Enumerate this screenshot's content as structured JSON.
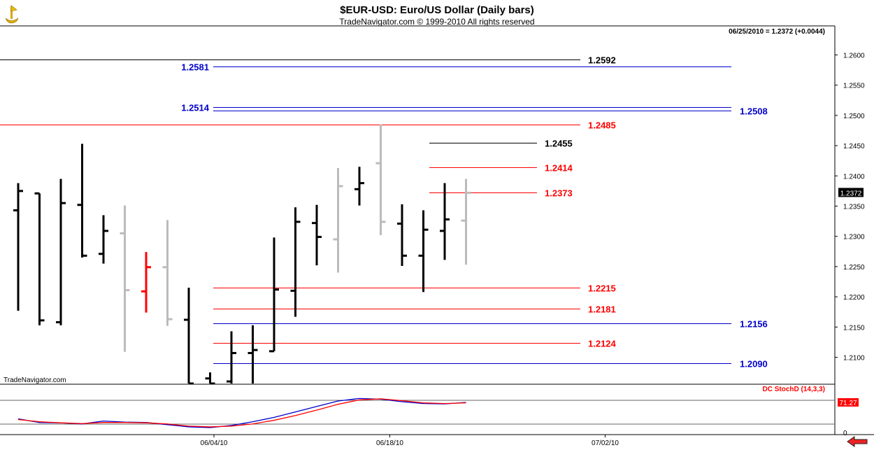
{
  "header": {
    "title": "$EUR-USD:  Euro/US Dollar  (Daily bars)",
    "subtitle": "TradeNavigator.com © 1999-2010 All rights reserved",
    "quote": "06/25/2010 = 1.2372 (+0.0044)"
  },
  "watermark": "TradeNavigator.com",
  "colors": {
    "black": "#000000",
    "gray": "#bbbbbb",
    "red": "#ff0000",
    "blue": "#0000cc",
    "stoch_k": "#0000cc",
    "stoch_d": "#ff0000"
  },
  "chart_data": [
    {
      "type": "bar",
      "name": "price",
      "y_ticks": [
        "1.2100",
        "1.2150",
        "1.2200",
        "1.2250",
        "1.2300",
        "1.2350",
        "1.2400",
        "1.2450",
        "1.2500",
        "1.2550",
        "1.2600"
      ],
      "ylim": [
        1.2057,
        1.2655
      ],
      "x_ticks": [
        "06/04/10",
        "06/18/10",
        "07/02/10"
      ],
      "last_price_label": "1.2372",
      "bars": [
        {
          "high": 1.2388,
          "low": 1.2177,
          "open": 1.2343,
          "close": 1.2375,
          "color": "black"
        },
        {
          "high": 1.2371,
          "low": 1.2153,
          "open": 1.2371,
          "close": 1.2161,
          "color": "black"
        },
        {
          "high": 1.2395,
          "low": 1.2153,
          "open": 1.2158,
          "close": 1.2355,
          "color": "black"
        },
        {
          "high": 1.2453,
          "low": 1.2265,
          "open": 1.2352,
          "close": 1.2268,
          "color": "black"
        },
        {
          "high": 1.2335,
          "low": 1.2255,
          "open": 1.2271,
          "close": 1.2309,
          "color": "black"
        },
        {
          "high": 1.2351,
          "low": 1.2109,
          "open": 1.2305,
          "close": 1.2211,
          "color": "gray"
        },
        {
          "high": 1.2274,
          "low": 1.2174,
          "open": 1.2209,
          "close": 1.2249,
          "color": "red"
        },
        {
          "high": 1.2327,
          "low": 1.2152,
          "open": 1.2249,
          "close": 1.2163,
          "color": "gray"
        },
        {
          "high": 1.2215,
          "low": 1.205,
          "open": 1.2162,
          "close": 1.205,
          "color": "black"
        },
        {
          "high": 1.2075,
          "low": 1.205,
          "open": 1.2065,
          "close": 1.205,
          "color": "black"
        },
        {
          "high": 1.2143,
          "low": 1.205,
          "open": 1.206,
          "close": 1.2107,
          "color": "black"
        },
        {
          "high": 1.2153,
          "low": 1.205,
          "open": 1.2107,
          "close": 1.2112,
          "color": "black"
        },
        {
          "high": 1.2298,
          "low": 1.211,
          "open": 1.211,
          "close": 1.2212,
          "color": "black"
        },
        {
          "high": 1.2348,
          "low": 1.2167,
          "open": 1.221,
          "close": 1.2324,
          "color": "black"
        },
        {
          "high": 1.2352,
          "low": 1.2252,
          "open": 1.2322,
          "close": 1.2299,
          "color": "black"
        },
        {
          "high": 1.2413,
          "low": 1.224,
          "open": 1.2295,
          "close": 1.2383,
          "color": "gray"
        },
        {
          "high": 1.2415,
          "low": 1.2351,
          "open": 1.2378,
          "close": 1.2388,
          "color": "black"
        },
        {
          "high": 1.2485,
          "low": 1.2302,
          "open": 1.2421,
          "close": 1.2324,
          "color": "gray"
        },
        {
          "high": 1.2353,
          "low": 1.2251,
          "open": 1.2321,
          "close": 1.2268,
          "color": "black"
        },
        {
          "high": 1.2343,
          "low": 1.2208,
          "open": 1.2268,
          "close": 1.2311,
          "color": "black"
        },
        {
          "high": 1.2388,
          "low": 1.2261,
          "open": 1.2309,
          "close": 1.2328,
          "color": "black"
        },
        {
          "high": 1.2395,
          "low": 1.2253,
          "open": 1.2326,
          "close": 1.2372,
          "color": "gray"
        }
      ],
      "levels": [
        {
          "value": 1.2592,
          "label": "1.2592",
          "color": "black",
          "side": "left",
          "label_side": "right"
        },
        {
          "value": 1.2581,
          "label": "1.2581",
          "color": "blue",
          "side": "mid",
          "label_side": "left"
        },
        {
          "value": 1.2514,
          "label": "1.2514",
          "color": "blue",
          "side": "mid",
          "label_side": "left"
        },
        {
          "value": 1.2508,
          "label": "1.2508",
          "color": "blue",
          "side": "mid",
          "label_side": "right"
        },
        {
          "value": 1.2485,
          "label": "1.2485",
          "color": "red",
          "side": "left",
          "label_side": "right"
        },
        {
          "value": 1.2455,
          "label": "1.2455",
          "color": "black",
          "side": "short",
          "label_side": "right"
        },
        {
          "value": 1.2414,
          "label": "1.2414",
          "color": "red",
          "side": "short",
          "label_side": "right"
        },
        {
          "value": 1.2373,
          "label": "1.2373",
          "color": "red",
          "side": "short",
          "label_side": "right"
        },
        {
          "value": 1.2215,
          "label": "1.2215",
          "color": "red",
          "side": "mid",
          "label_side": "right"
        },
        {
          "value": 1.2181,
          "label": "1.2181",
          "color": "red",
          "side": "mid",
          "label_side": "right"
        },
        {
          "value": 1.2156,
          "label": "1.2156",
          "color": "blue",
          "side": "mid",
          "label_side": "right"
        },
        {
          "value": 1.2124,
          "label": "1.2124",
          "color": "red",
          "side": "mid",
          "label_side": "right"
        },
        {
          "value": 1.209,
          "label": "1.2090",
          "color": "blue",
          "side": "mid",
          "label_side": "right"
        }
      ]
    },
    {
      "type": "line",
      "name": "DC StochD (14,3,3)",
      "ylim": [
        0,
        100
      ],
      "y_ticks": [
        "0"
      ],
      "last_value_label": "71.27",
      "series": [
        {
          "color": "blue",
          "values": [
            [
              0,
              26
            ],
            [
              1,
              16
            ],
            [
              2,
              15
            ],
            [
              3,
              12
            ],
            [
              4,
              20
            ],
            [
              5,
              17
            ],
            [
              6,
              16
            ],
            [
              7,
              10
            ],
            [
              8,
              4
            ],
            [
              9,
              2
            ],
            [
              10,
              8
            ],
            [
              11,
              18
            ],
            [
              12,
              30
            ],
            [
              13,
              45
            ],
            [
              14,
              60
            ],
            [
              15,
              75
            ],
            [
              16,
              82
            ],
            [
              17,
              80
            ],
            [
              18,
              73
            ],
            [
              19,
              68
            ],
            [
              20,
              67
            ],
            [
              21,
              71
            ]
          ]
        },
        {
          "color": "red",
          "values": [
            [
              0,
              24
            ],
            [
              1,
              18
            ],
            [
              2,
              15
            ],
            [
              3,
              13
            ],
            [
              4,
              16
            ],
            [
              5,
              16
            ],
            [
              6,
              15
            ],
            [
              7,
              12
            ],
            [
              8,
              6
            ],
            [
              9,
              4
            ],
            [
              10,
              6
            ],
            [
              11,
              12
            ],
            [
              12,
              22
            ],
            [
              13,
              35
            ],
            [
              14,
              50
            ],
            [
              15,
              66
            ],
            [
              16,
              78
            ],
            [
              17,
              81
            ],
            [
              18,
              76
            ],
            [
              19,
              70
            ],
            [
              20,
              68
            ],
            [
              21,
              70
            ]
          ]
        }
      ]
    }
  ]
}
